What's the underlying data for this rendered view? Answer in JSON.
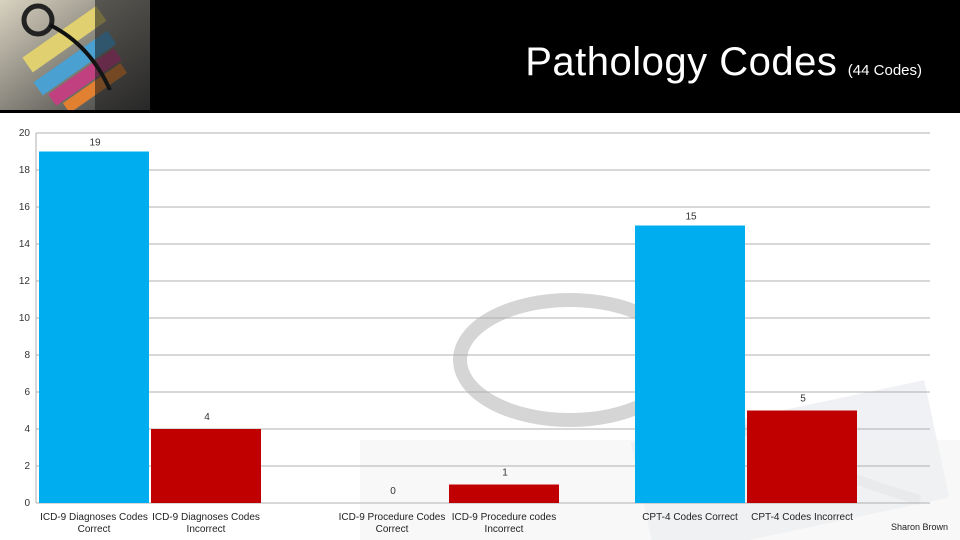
{
  "slide": {
    "title": "Pathology Codes",
    "subtitle": "(44 Codes)",
    "credit": "Sharon Brown"
  },
  "colors": {
    "correct": "#00AEEF",
    "incorrect": "#C00000",
    "header_bg": "#000000"
  },
  "icons": {
    "logo": "medical-codes-stethoscope-photo",
    "watermark": "stethoscope-faded-photo"
  },
  "chart_data": {
    "type": "bar",
    "title": "",
    "xlabel": "",
    "ylabel": "",
    "ylim": [
      0,
      20
    ],
    "yticks": [
      0,
      2,
      4,
      6,
      8,
      10,
      12,
      14,
      16,
      18,
      20
    ],
    "grid": true,
    "legend": "none",
    "groups": [
      {
        "bars": [
          {
            "label": [
              "ICD-9 Diagnoses Codes",
              "Correct"
            ],
            "value": 19,
            "kind": "correct"
          },
          {
            "label": [
              "ICD-9 Diagnoses Codes",
              "Incorrect"
            ],
            "value": 4,
            "kind": "incorrect"
          }
        ]
      },
      {
        "bars": [
          {
            "label": [
              "ICD-9 Procedure Codes",
              "Correct"
            ],
            "value": 0,
            "kind": "correct"
          },
          {
            "label": [
              "ICD-9 Procedure codes",
              "Incorrect"
            ],
            "value": 1,
            "kind": "incorrect"
          }
        ]
      },
      {
        "bars": [
          {
            "label": [
              "CPT-4 Codes Correct"
            ],
            "value": 15,
            "kind": "correct"
          },
          {
            "label": [
              "CPT-4 Codes Incorrect"
            ],
            "value": 5,
            "kind": "incorrect"
          }
        ]
      }
    ]
  }
}
